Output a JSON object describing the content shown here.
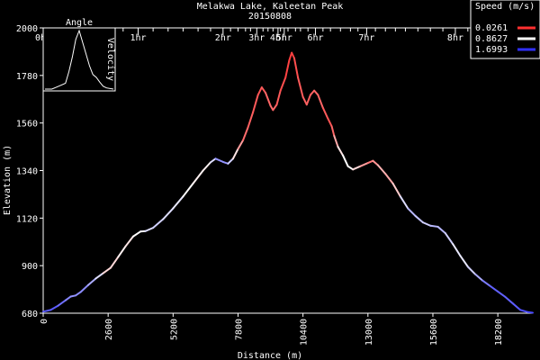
{
  "chart_data": {
    "type": "line",
    "title": "Melakwa Lake, Kaleetan Peak",
    "subtitle": "20150808",
    "xlabel": "Distance (m)",
    "ylabel": "Elevation (m)",
    "xlim": [
      0,
      19600
    ],
    "ylim": [
      680,
      2000
    ],
    "x_ticks": [
      0,
      2600,
      5200,
      7800,
      10400,
      13000,
      15600,
      18200
    ],
    "y_ticks": [
      680,
      900,
      1120,
      1340,
      1560,
      1780,
      2000
    ],
    "time_ticks": [
      {
        "label": "0hr",
        "x": 0
      },
      {
        "label": "1hr",
        "x": 3800
      },
      {
        "label": "2hr",
        "x": 7200
      },
      {
        "label": "3hr",
        "x": 8550
      },
      {
        "label": "4hr",
        "x": 9400
      },
      {
        "label": "5hr",
        "x": 9650
      },
      {
        "label": "6hr",
        "x": 10900
      },
      {
        "label": "7hr",
        "x": 12950
      },
      {
        "label": "8hr",
        "x": 16500
      }
    ],
    "time_minor_ticks": [
      600,
      1200,
      1900,
      2500,
      3200,
      4400,
      5000,
      5600,
      6200,
      6700,
      7500,
      7800,
      8100,
      8300,
      8800,
      9000,
      9200,
      9500,
      9800,
      10100,
      10300,
      10600,
      11200,
      11500,
      11900,
      12300,
      12600,
      13300,
      13700,
      14100,
      14500,
      15000,
      15500,
      16000,
      17000,
      17500,
      18000,
      18500,
      19000
    ],
    "speed_legend": {
      "title": "Speed (m/s)",
      "entries": [
        {
          "label": "0.0261",
          "color": "#ff3030"
        },
        {
          "label": "0.8627",
          "color": "#ffffff"
        },
        {
          "label": "1.6993",
          "color": "#3030ff"
        }
      ]
    },
    "inset": {
      "labels": [
        "Angle",
        "Velocity"
      ],
      "profile": [
        [
          0,
          0
        ],
        [
          0.1,
          0
        ],
        [
          0.2,
          0.05
        ],
        [
          0.3,
          0.1
        ],
        [
          0.35,
          0.3
        ],
        [
          0.4,
          0.55
        ],
        [
          0.45,
          0.85
        ],
        [
          0.5,
          1.0
        ],
        [
          0.55,
          0.8
        ],
        [
          0.6,
          0.6
        ],
        [
          0.65,
          0.4
        ],
        [
          0.7,
          0.25
        ],
        [
          0.75,
          0.2
        ],
        [
          0.8,
          0.12
        ],
        [
          0.85,
          0.05
        ],
        [
          0.9,
          0.02
        ],
        [
          1.0,
          0
        ]
      ]
    },
    "series": [
      {
        "points": [
          [
            0,
            687,
            1.5
          ],
          [
            300,
            695,
            1.55
          ],
          [
            600,
            715,
            1.5
          ],
          [
            900,
            740,
            1.4
          ],
          [
            1100,
            757,
            1.3
          ],
          [
            1300,
            762,
            1.3
          ],
          [
            1500,
            778,
            1.35
          ],
          [
            1800,
            810,
            1.3
          ],
          [
            2100,
            840,
            1.1
          ],
          [
            2400,
            865,
            0.9
          ],
          [
            2700,
            890,
            0.5
          ],
          [
            3000,
            940,
            0.9
          ],
          [
            3300,
            990,
            0.7
          ],
          [
            3600,
            1035,
            0.8
          ],
          [
            3900,
            1058,
            0.9
          ],
          [
            4100,
            1060,
            0.9
          ],
          [
            4400,
            1075,
            1.1
          ],
          [
            4800,
            1115,
            1.0
          ],
          [
            5200,
            1165,
            1.0
          ],
          [
            5600,
            1220,
            0.9
          ],
          [
            6000,
            1280,
            0.8
          ],
          [
            6400,
            1340,
            0.8
          ],
          [
            6700,
            1378,
            0.8
          ],
          [
            6900,
            1395,
            1.2
          ],
          [
            7200,
            1380,
            1.4
          ],
          [
            7400,
            1372,
            1.2
          ],
          [
            7600,
            1395,
            0.9
          ],
          [
            7800,
            1440,
            0.6
          ],
          [
            8000,
            1480,
            0.3
          ],
          [
            8200,
            1540,
            0.2
          ],
          [
            8400,
            1610,
            0.2
          ],
          [
            8600,
            1690,
            0.15
          ],
          [
            8750,
            1725,
            0.15
          ],
          [
            8900,
            1700,
            0.2
          ],
          [
            9100,
            1640,
            0.25
          ],
          [
            9200,
            1620,
            0.25
          ],
          [
            9350,
            1645,
            0.2
          ],
          [
            9500,
            1710,
            0.15
          ],
          [
            9700,
            1770,
            0.1
          ],
          [
            9850,
            1850,
            0.05
          ],
          [
            9950,
            1885,
            0.05
          ],
          [
            10050,
            1860,
            0.1
          ],
          [
            10200,
            1770,
            0.15
          ],
          [
            10400,
            1680,
            0.2
          ],
          [
            10550,
            1645,
            0.2
          ],
          [
            10700,
            1690,
            0.2
          ],
          [
            10850,
            1710,
            0.2
          ],
          [
            11000,
            1690,
            0.25
          ],
          [
            11200,
            1630,
            0.2
          ],
          [
            11400,
            1580,
            0.15
          ],
          [
            11550,
            1545,
            0.15
          ],
          [
            11650,
            1500,
            0.3
          ],
          [
            11800,
            1450,
            0.7
          ],
          [
            12000,
            1410,
            0.8
          ],
          [
            12200,
            1360,
            0.9
          ],
          [
            12400,
            1345,
            0.8
          ],
          [
            12700,
            1360,
            0.6
          ],
          [
            13000,
            1375,
            0.3
          ],
          [
            13200,
            1385,
            0.3
          ],
          [
            13400,
            1365,
            0.5
          ],
          [
            13700,
            1325,
            0.6
          ],
          [
            14000,
            1280,
            0.4
          ],
          [
            14300,
            1220,
            0.9
          ],
          [
            14600,
            1165,
            1.1
          ],
          [
            14900,
            1130,
            1.2
          ],
          [
            15200,
            1100,
            1.0
          ],
          [
            15500,
            1085,
            1.1
          ],
          [
            15800,
            1080,
            1.2
          ],
          [
            16100,
            1050,
            1.1
          ],
          [
            16400,
            1000,
            1.0
          ],
          [
            16700,
            945,
            0.9
          ],
          [
            17000,
            895,
            1.0
          ],
          [
            17300,
            860,
            1.1
          ],
          [
            17600,
            830,
            1.3
          ],
          [
            17900,
            805,
            1.5
          ],
          [
            18200,
            780,
            1.5
          ],
          [
            18500,
            755,
            1.5
          ],
          [
            18800,
            725,
            1.5
          ],
          [
            19100,
            695,
            1.55
          ],
          [
            19400,
            685,
            1.6
          ],
          [
            19600,
            682,
            1.6
          ]
        ]
      }
    ]
  }
}
